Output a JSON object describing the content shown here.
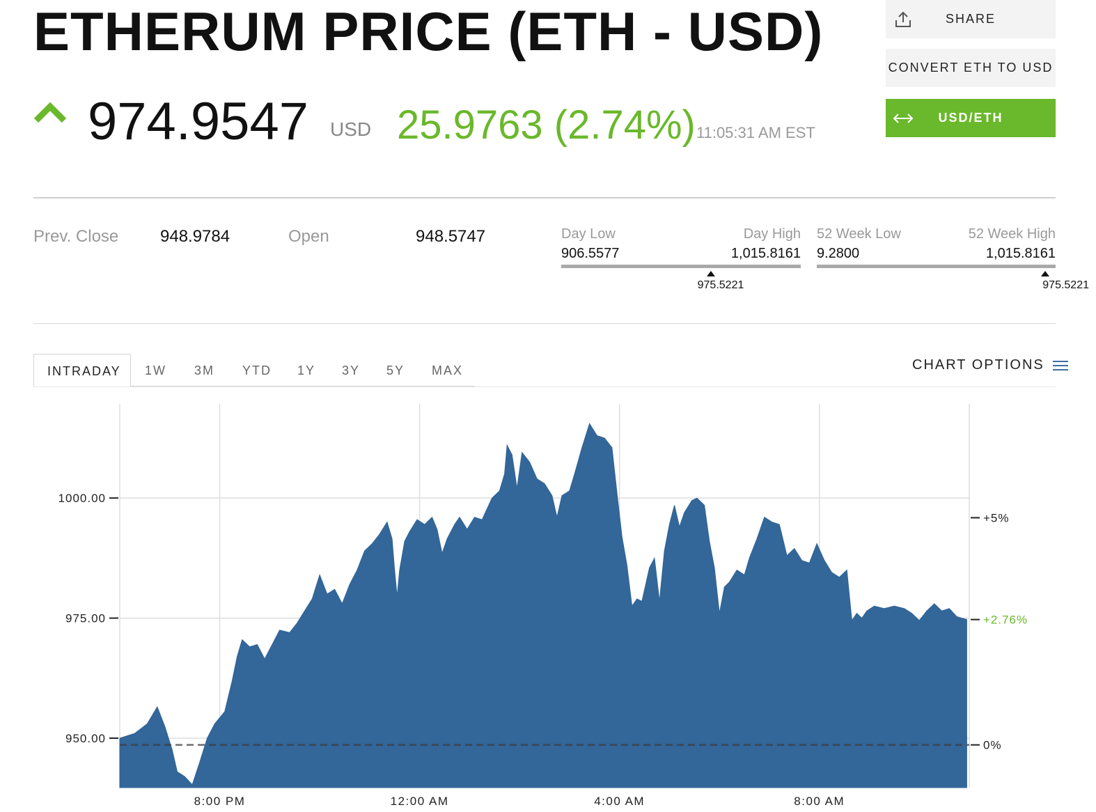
{
  "header": {
    "title": "ETHERUM PRICE (ETH - USD)",
    "price": "974.9547",
    "currency": "USD",
    "change": "25.9763 (2.74%)",
    "time": "11:05:31 AM EST",
    "up_icon": "triangle-up-icon",
    "accent_color": "#6ab82b"
  },
  "actions": {
    "share_label": "SHARE",
    "convert_label": "CONVERT ETH TO USD",
    "toggle_label": "USD/ETH",
    "share_icon": "upload-icon",
    "toggle_icon": "swap-arrows-icon"
  },
  "stats": {
    "prev_close_label": "Prev. Close",
    "prev_close_value": "948.9784",
    "open_label": "Open",
    "open_value": "948.5747",
    "day_low_label": "Day Low",
    "day_low_value": "906.5577",
    "day_high_label": "Day High",
    "day_high_value": "1,015.8161",
    "day_marker": "975.5221",
    "week52_low_label": "52 Week Low",
    "week52_low_value": "9.2800",
    "week52_high_label": "52 Week High",
    "week52_high_value": "1,015.8161",
    "week52_marker": "975.5221"
  },
  "tabs": [
    "INTRADAY",
    "1W",
    "3M",
    "YTD",
    "1Y",
    "3Y",
    "5Y",
    "MAX"
  ],
  "chart_options_label": "CHART OPTIONS",
  "chart_data": {
    "type": "area",
    "ylim": [
      939.7,
      1019.6
    ],
    "grid": true,
    "color": "#336699",
    "y_ticks": [
      {
        "value": 950,
        "label": "950.00"
      },
      {
        "value": 975,
        "label": "975.00"
      },
      {
        "value": 1000,
        "label": "1000.00"
      }
    ],
    "x_ticks": [
      {
        "x": 20,
        "label": "8:00 PM"
      },
      {
        "x": 24,
        "label": "12:00 AM"
      },
      {
        "x": 28,
        "label": "4:00 AM"
      },
      {
        "x": 32,
        "label": "8:00 AM"
      }
    ],
    "xlim": [
      18,
      35
    ],
    "pct_ticks": [
      {
        "value": 948.6,
        "label": "0%",
        "color": "#222222"
      },
      {
        "value": 974.7,
        "label": "+2.76%",
        "color": "#6ab82b"
      },
      {
        "value": 995.9,
        "label": "+5%",
        "color": "#222222"
      }
    ],
    "baseline": 948.6,
    "points": [
      [
        18.0,
        950.0
      ],
      [
        18.3,
        951.0
      ],
      [
        18.55,
        953.0
      ],
      [
        18.75,
        956.5
      ],
      [
        18.9,
        952.5
      ],
      [
        19.05,
        947.5
      ],
      [
        19.15,
        943.0
      ],
      [
        19.3,
        942.0
      ],
      [
        19.45,
        940.3
      ],
      [
        19.6,
        945.0
      ],
      [
        19.75,
        950.0
      ],
      [
        19.9,
        953.0
      ],
      [
        20.1,
        955.5
      ],
      [
        20.25,
        962.0
      ],
      [
        20.35,
        967.0
      ],
      [
        20.45,
        970.5
      ],
      [
        20.6,
        969.0
      ],
      [
        20.75,
        969.5
      ],
      [
        20.9,
        966.5
      ],
      [
        21.05,
        969.5
      ],
      [
        21.2,
        972.5
      ],
      [
        21.4,
        972.0
      ],
      [
        21.55,
        974.0
      ],
      [
        21.7,
        976.5
      ],
      [
        21.85,
        979.0
      ],
      [
        22.0,
        984.0
      ],
      [
        22.15,
        980.0
      ],
      [
        22.3,
        981.0
      ],
      [
        22.45,
        978.0
      ],
      [
        22.6,
        982.0
      ],
      [
        22.75,
        985.0
      ],
      [
        22.9,
        989.0
      ],
      [
        23.05,
        990.5
      ],
      [
        23.2,
        992.5
      ],
      [
        23.35,
        995.0
      ],
      [
        23.45,
        991.5
      ],
      [
        23.5,
        985.0
      ],
      [
        23.55,
        979.5
      ],
      [
        23.6,
        985.0
      ],
      [
        23.7,
        991.0
      ],
      [
        23.8,
        993.0
      ],
      [
        23.95,
        995.5
      ],
      [
        24.1,
        994.5
      ],
      [
        24.25,
        996.0
      ],
      [
        24.35,
        993.5
      ],
      [
        24.45,
        988.5
      ],
      [
        24.55,
        991.5
      ],
      [
        24.7,
        994.5
      ],
      [
        24.8,
        996.0
      ],
      [
        24.95,
        993.5
      ],
      [
        25.1,
        996.0
      ],
      [
        25.25,
        995.5
      ],
      [
        25.45,
        1000.0
      ],
      [
        25.6,
        1001.5
      ],
      [
        25.7,
        1005.0
      ],
      [
        25.75,
        1011.0
      ],
      [
        25.85,
        1009.0
      ],
      [
        25.95,
        1002.0
      ],
      [
        26.05,
        1009.5
      ],
      [
        26.2,
        1007.5
      ],
      [
        26.35,
        1004.0
      ],
      [
        26.5,
        1003.0
      ],
      [
        26.65,
        1000.5
      ],
      [
        26.75,
        996.0
      ],
      [
        26.85,
        1000.5
      ],
      [
        27.0,
        1001.5
      ],
      [
        27.1,
        1005.0
      ],
      [
        27.25,
        1010.5
      ],
      [
        27.4,
        1015.5
      ],
      [
        27.55,
        1013.0
      ],
      [
        27.7,
        1012.5
      ],
      [
        27.85,
        1010.5
      ],
      [
        27.95,
        1001.0
      ],
      [
        28.05,
        992.0
      ],
      [
        28.15,
        986.0
      ],
      [
        28.25,
        977.5
      ],
      [
        28.35,
        979.0
      ],
      [
        28.45,
        978.5
      ],
      [
        28.6,
        985.5
      ],
      [
        28.7,
        987.5
      ],
      [
        28.8,
        978.5
      ],
      [
        28.9,
        989.0
      ],
      [
        29.0,
        994.5
      ],
      [
        29.1,
        998.5
      ],
      [
        29.2,
        994.0
      ],
      [
        29.3,
        997.0
      ],
      [
        29.45,
        999.5
      ],
      [
        29.55,
        1000.0
      ],
      [
        29.7,
        998.5
      ],
      [
        29.8,
        991.0
      ],
      [
        29.9,
        985.5
      ],
      [
        30.0,
        976.0
      ],
      [
        30.1,
        981.5
      ],
      [
        30.2,
        982.5
      ],
      [
        30.35,
        985.0
      ],
      [
        30.5,
        984.0
      ],
      [
        30.6,
        987.5
      ],
      [
        30.75,
        991.5
      ],
      [
        30.9,
        996.0
      ],
      [
        31.05,
        995.0
      ],
      [
        31.2,
        994.5
      ],
      [
        31.35,
        988.0
      ],
      [
        31.5,
        989.5
      ],
      [
        31.65,
        987.0
      ],
      [
        31.8,
        986.5
      ],
      [
        31.95,
        990.5
      ],
      [
        32.1,
        987.0
      ],
      [
        32.25,
        984.5
      ],
      [
        32.4,
        983.5
      ],
      [
        32.55,
        985.0
      ],
      [
        32.65,
        974.5
      ],
      [
        32.75,
        976.0
      ],
      [
        32.85,
        975.0
      ],
      [
        32.95,
        976.5
      ],
      [
        33.1,
        977.5
      ],
      [
        33.3,
        977.0
      ],
      [
        33.5,
        977.5
      ],
      [
        33.7,
        977.0
      ],
      [
        33.85,
        976.0
      ],
      [
        34.0,
        974.5
      ],
      [
        34.15,
        976.5
      ],
      [
        34.3,
        978.0
      ],
      [
        34.45,
        976.5
      ],
      [
        34.6,
        977.0
      ],
      [
        34.75,
        975.3
      ],
      [
        34.95,
        974.7
      ]
    ]
  }
}
